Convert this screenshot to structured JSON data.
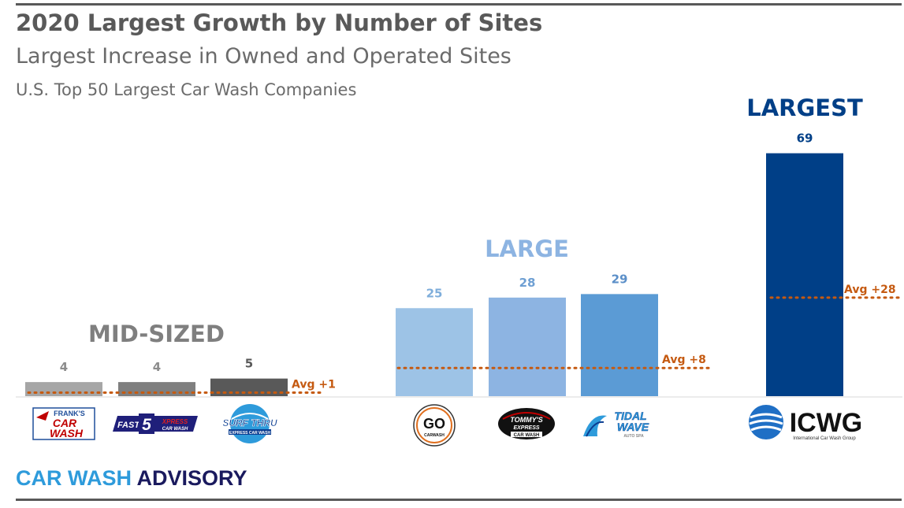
{
  "title": "2020 Largest Growth by Number of Sites",
  "subtitle": "Largest Increase in Owned and Operated Sites",
  "subtitle2": "U.S. Top 50 Largest Car Wash Companies",
  "footer": {
    "part1": "CAR WASH",
    "part2": "ADVISORY",
    "color1": "#2E9BDB",
    "color2": "#1A1A5E"
  },
  "chart_data": {
    "type": "bar",
    "categories": [
      "Frank's Car Wash",
      "Fast 5 Xpress Car Wash",
      "Surf Thru Express Car Wash",
      "GO Car Wash",
      "Tommy's Express Car Wash",
      "Tidal Wave Auto Spa",
      "ICWG"
    ],
    "values": [
      4,
      4,
      5,
      25,
      28,
      29,
      69
    ],
    "bar_colors": [
      "#A6A6A6",
      "#7F7F7F",
      "#595959",
      "#9DC3E6",
      "#8DB4E2",
      "#5B9BD5",
      "#003F87"
    ],
    "label_colors": [
      "#8C8C8C",
      "#8C8C8C",
      "#595959",
      "#7FAEDB",
      "#6E9FD3",
      "#5B8FC8",
      "#003F87"
    ],
    "ylim": [
      0,
      75
    ],
    "groups": [
      {
        "label": "MID-SIZED",
        "color": "#7F7F7F",
        "members": [
          0,
          1,
          2
        ],
        "avg": 1,
        "avg_label": "Avg +1"
      },
      {
        "label": "LARGE",
        "color": "#8DB4E2",
        "members": [
          3,
          4,
          5
        ],
        "avg": 8,
        "avg_label": "Avg +8"
      },
      {
        "label": "LARGEST",
        "color": "#003F87",
        "members": [
          6
        ],
        "avg": 28,
        "avg_label": "Avg +28"
      }
    ],
    "avg_color": "#C55A11",
    "grid": false,
    "legend": "none"
  },
  "logos": {
    "franks": {
      "line1": "FRANK'S",
      "line2": "CAR",
      "line3": "WASH"
    },
    "fast5": {
      "left": "FAST",
      "num": "5",
      "right": "XPRESS",
      "sub": "CAR WASH"
    },
    "surf": {
      "main": "SURF THRU",
      "sub": "EXPRESS CAR WASH"
    },
    "go": {
      "main": "GO",
      "sub": "CARWASH"
    },
    "tommys": {
      "line1": "TOMMY'S",
      "line2": "EXPRESS",
      "line3": "CAR WASH"
    },
    "tidal": {
      "line1": "TIDAL",
      "line2": "WAVE",
      "line3": "AUTO SPA"
    },
    "icwg": {
      "main": "ICWG",
      "sub": "International Car Wash Group"
    }
  }
}
